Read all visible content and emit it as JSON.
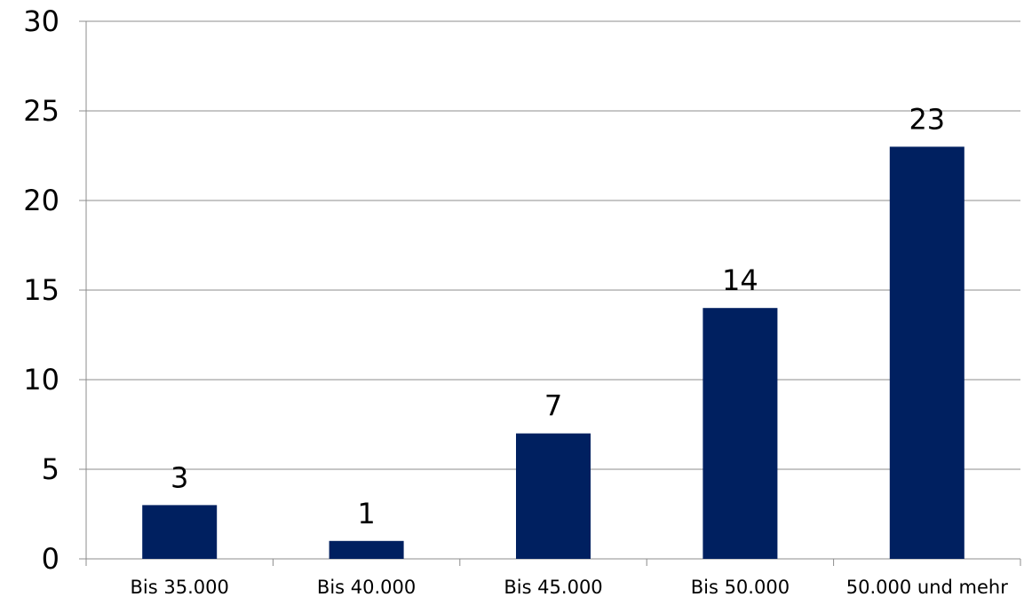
{
  "chart_data": {
    "type": "bar",
    "categories": [
      "Bis 35.000",
      "Bis 40.000",
      "Bis 45.000",
      "Bis 50.000",
      "50.000 und mehr"
    ],
    "values": [
      3,
      1,
      7,
      14,
      23
    ],
    "data_labels": [
      "3",
      "1",
      "7",
      "14",
      "23"
    ],
    "yticks": [
      0,
      5,
      10,
      15,
      20,
      25,
      30
    ],
    "ylim": [
      0,
      30
    ],
    "grid": true,
    "legend": "none",
    "bar_color": "#002060"
  }
}
